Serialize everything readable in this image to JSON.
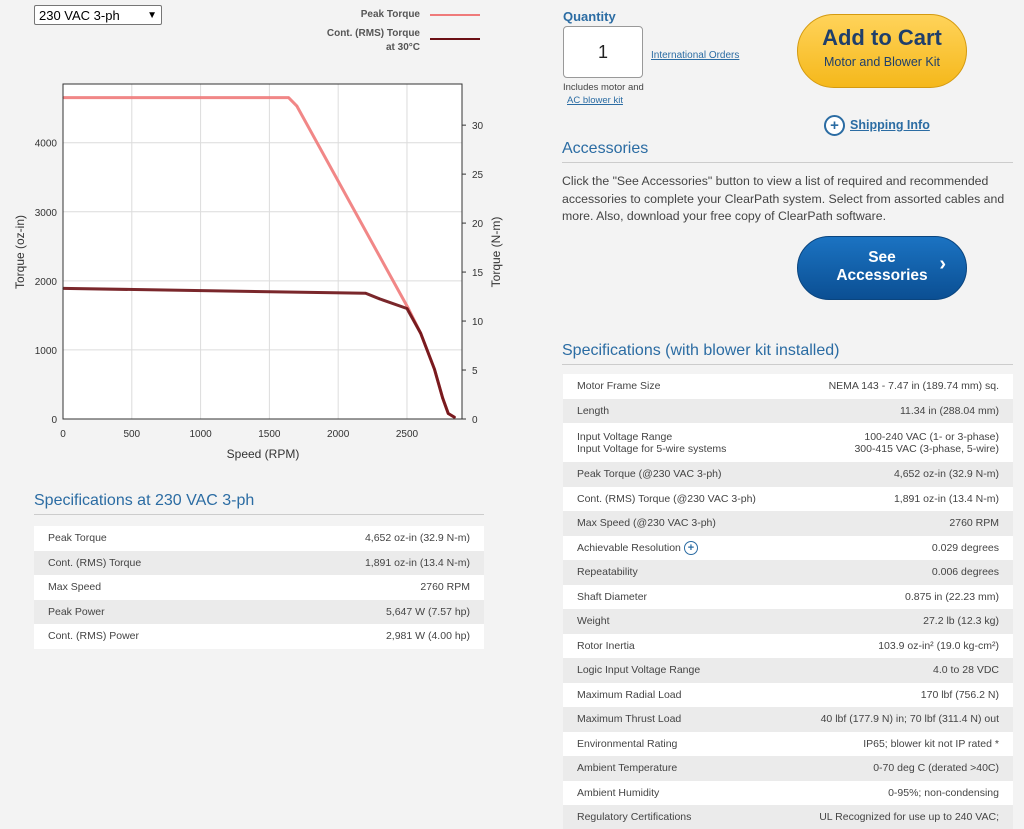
{
  "voltage_select": {
    "value": "230 VAC 3-ph"
  },
  "legend": {
    "peak_label": "Peak Torque",
    "cont_label_line1": "Cont. (RMS) Torque",
    "cont_label_line2": "at 30°C",
    "peak_color": "#ef7a7a",
    "cont_color": "#6b0f14"
  },
  "chart_data": {
    "type": "line",
    "xlabel": "Speed (RPM)",
    "ylabel": "Torque (oz-in)",
    "y2label": "Torque (N-m)",
    "xlim": [
      0,
      2900
    ],
    "ylim": [
      0,
      4850
    ],
    "y2lim": [
      0,
      34.2
    ],
    "x_ticks": [
      0,
      500,
      1000,
      1500,
      2000,
      2500
    ],
    "y_ticks": [
      0,
      1000,
      2000,
      3000,
      4000
    ],
    "y2_ticks": [
      0,
      5,
      10,
      15,
      20,
      25,
      30
    ],
    "grid": true,
    "series": [
      {
        "name": "Peak Torque",
        "color": "#ef7a7a",
        "x": [
          0,
          1640,
          1700,
          2510,
          2600,
          2700,
          2760,
          2800,
          2850
        ],
        "y": [
          4652,
          4652,
          4530,
          1600,
          1240,
          720,
          300,
          80,
          20
        ]
      },
      {
        "name": "Cont. (RMS) Torque",
        "color": "#6b0f14",
        "x": [
          0,
          2200,
          2300,
          2500,
          2600,
          2700,
          2760,
          2800,
          2850
        ],
        "y": [
          1891,
          1820,
          1740,
          1600,
          1240,
          720,
          300,
          80,
          20
        ]
      }
    ]
  },
  "left_specs": {
    "title": "Specifications at 230 VAC 3-ph",
    "rows": [
      {
        "k": "Peak Torque",
        "v": "4,652 oz-in (32.9 N-m)"
      },
      {
        "k": "Cont. (RMS) Torque",
        "v": "1,891 oz-in (13.4 N-m)"
      },
      {
        "k": "Max Speed",
        "v": "2760 RPM"
      },
      {
        "k": "Peak Power",
        "v": "5,647 W (7.57 hp)"
      },
      {
        "k": "Cont. (RMS) Power",
        "v": "2,981 W (4.00 hp)"
      }
    ]
  },
  "quantity": {
    "label": "Quantity",
    "value": "1",
    "intl_link": "International Orders",
    "includes_text": "Includes motor and",
    "includes_link": "AC blower kit"
  },
  "cart": {
    "title": "Add to Cart",
    "subtitle": "Motor and Blower Kit"
  },
  "shipping": {
    "label": "Shipping Info"
  },
  "accessories": {
    "title": "Accessories",
    "text": "Click the \"See Accessories\" button to view a list of required and recommended accessories to complete your ClearPath system. Select from assorted cables and more. Also, download your free copy of ClearPath software.",
    "button_line1": "See",
    "button_line2": "Accessories"
  },
  "specs": {
    "title": "Specifications (with blower kit installed)",
    "rows": [
      {
        "k": "Motor Frame Size",
        "v": "NEMA 143 - 7.47 in (189.74 mm) sq."
      },
      {
        "k": "Length",
        "v": "11.34 in (288.04 mm)"
      },
      {
        "k": "Input Voltage Range",
        "k2": "Input Voltage for 5-wire systems",
        "v": "100-240 VAC (1- or 3-phase)",
        "v2": "300-415 VAC (3-phase, 5-wire)"
      },
      {
        "k": "Peak Torque (@230 VAC 3-ph)",
        "v": "4,652 oz-in (32.9 N-m)"
      },
      {
        "k": "Cont. (RMS) Torque (@230 VAC 3-ph)",
        "v": "1,891 oz-in (13.4 N-m)"
      },
      {
        "k": "Max Speed (@230 VAC 3-ph)",
        "v": "2760 RPM"
      },
      {
        "k": "Achievable Resolution",
        "v": "0.029 degrees",
        "icon": true
      },
      {
        "k": "Repeatability",
        "v": "0.006 degrees"
      },
      {
        "k": "Shaft Diameter",
        "v": "0.875 in (22.23 mm)"
      },
      {
        "k": "Weight",
        "v": "27.2 lb (12.3 kg)"
      },
      {
        "k": "Rotor Inertia",
        "v": "103.9 oz-in² (19.0 kg-cm²)"
      },
      {
        "k": "Logic Input Voltage Range",
        "v": "4.0 to 28 VDC"
      },
      {
        "k": "Maximum Radial Load",
        "v": "170 lbf (756.2 N)"
      },
      {
        "k": "Maximum Thrust Load",
        "v": "40 lbf (177.9 N) in; 70 lbf (311.4 N) out"
      },
      {
        "k": "Environmental Rating",
        "v": "IP65; blower kit not IP rated *"
      },
      {
        "k": "Ambient Temperature",
        "v": "0-70 deg C (derated >40C)"
      },
      {
        "k": "Ambient Humidity",
        "v": "0-95%; non-condensing"
      },
      {
        "k": "Regulatory Certifications",
        "v": "UL Recognized for use up to 240 VAC;"
      }
    ]
  }
}
